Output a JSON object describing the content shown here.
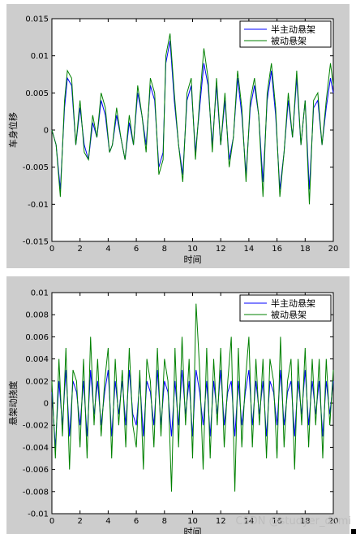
{
  "chart_data": [
    {
      "type": "line",
      "ylabel": "车身位移",
      "xlabel": "时间",
      "xlim": [
        0,
        20
      ],
      "ylim": [
        -0.015,
        0.015
      ],
      "xticks": [
        "0",
        "2",
        "4",
        "6",
        "8",
        "10",
        "12",
        "14",
        "16",
        "18",
        "20"
      ],
      "yticks": [
        "-0.015",
        "-0.01",
        "-0.005",
        "0",
        "0.005",
        "0.01",
        "0.015"
      ],
      "legend_position": "top-right",
      "grid": false,
      "x": [
        0,
        0.3,
        0.6,
        0.9,
        1.1,
        1.4,
        1.7,
        2.0,
        2.3,
        2.6,
        2.9,
        3.2,
        3.5,
        3.8,
        4.1,
        4.3,
        4.6,
        4.9,
        5.2,
        5.5,
        5.8,
        6.1,
        6.4,
        6.7,
        7.0,
        7.3,
        7.6,
        7.9,
        8.1,
        8.4,
        8.7,
        9.0,
        9.3,
        9.6,
        9.9,
        10.2,
        10.5,
        10.8,
        11.1,
        11.4,
        11.7,
        12.0,
        12.3,
        12.6,
        12.9,
        13.2,
        13.5,
        13.8,
        14.1,
        14.4,
        14.7,
        15.0,
        15.3,
        15.6,
        15.9,
        16.2,
        16.5,
        16.8,
        17.1,
        17.4,
        17.7,
        18.0,
        18.3,
        18.6,
        18.9,
        19.2,
        19.5,
        19.8,
        20.0
      ],
      "series": [
        {
          "name": "半主动悬架",
          "color": "#0000ff",
          "values": [
            0,
            -0.002,
            -0.008,
            0.003,
            0.007,
            0.006,
            -0.002,
            0.003,
            -0.002,
            -0.004,
            0.001,
            -0.001,
            0.004,
            0.002,
            -0.003,
            -0.002,
            0.002,
            -0.001,
            -0.004,
            0.001,
            -0.002,
            0.005,
            0.002,
            -0.002,
            0.006,
            0.004,
            -0.005,
            -0.003,
            0.009,
            0.012,
            0.004,
            -0.002,
            -0.006,
            0.004,
            0.006,
            -0.003,
            0.003,
            0.009,
            0.006,
            -0.002,
            0.006,
            -0.002,
            0.004,
            -0.004,
            -0.001,
            0.007,
            0.002,
            -0.006,
            0.003,
            0.006,
            0.002,
            -0.007,
            0.004,
            0.008,
            0.002,
            -0.008,
            -0.003,
            0.004,
            -0.001,
            0.007,
            -0.002,
            0.004,
            -0.008,
            0.003,
            0.004,
            -0.002,
            0.003,
            0.007,
            0.005
          ]
        },
        {
          "name": "被动悬架",
          "color": "#008000",
          "values": [
            0,
            -0.002,
            -0.009,
            0.004,
            0.008,
            0.007,
            -0.002,
            0.004,
            -0.003,
            -0.004,
            0.002,
            -0.001,
            0.005,
            0.003,
            -0.003,
            -0.002,
            0.003,
            -0.001,
            -0.004,
            0.002,
            -0.002,
            0.006,
            0.002,
            -0.003,
            0.007,
            0.005,
            -0.006,
            -0.004,
            0.01,
            0.013,
            0.005,
            -0.002,
            -0.007,
            0.005,
            0.007,
            -0.004,
            0.004,
            0.011,
            0.007,
            -0.003,
            0.007,
            -0.002,
            0.005,
            -0.005,
            -0.001,
            0.008,
            0.003,
            -0.007,
            0.004,
            0.007,
            0.002,
            -0.009,
            0.005,
            0.009,
            0.003,
            -0.009,
            -0.003,
            0.005,
            -0.001,
            0.008,
            -0.002,
            0.004,
            -0.01,
            0.004,
            0.005,
            -0.002,
            0.004,
            0.009,
            0.006
          ]
        }
      ]
    },
    {
      "type": "line",
      "ylabel": "悬架动挠度",
      "xlabel": "时间",
      "xlim": [
        0,
        20
      ],
      "ylim": [
        -0.01,
        0.01
      ],
      "xticks": [
        "0",
        "2",
        "4",
        "6",
        "8",
        "10",
        "12",
        "14",
        "16",
        "18",
        "20"
      ],
      "yticks": [
        "-0.01",
        "-0.008",
        "-0.006",
        "-0.004",
        "-0.002",
        "0",
        "0.002",
        "0.004",
        "0.006",
        "0.008",
        "0.01"
      ],
      "legend_position": "top-right",
      "grid": false,
      "x": [
        0,
        0.25,
        0.5,
        0.75,
        1.0,
        1.25,
        1.5,
        1.75,
        2.0,
        2.25,
        2.5,
        2.75,
        3.0,
        3.25,
        3.5,
        3.75,
        4.0,
        4.25,
        4.5,
        4.75,
        5.0,
        5.25,
        5.5,
        5.75,
        6.0,
        6.25,
        6.5,
        6.75,
        7.0,
        7.25,
        7.5,
        7.75,
        8.0,
        8.25,
        8.5,
        8.75,
        9.0,
        9.25,
        9.5,
        9.75,
        10.0,
        10.25,
        10.5,
        10.75,
        11.0,
        11.25,
        11.5,
        11.75,
        12.0,
        12.25,
        12.5,
        12.75,
        13.0,
        13.25,
        13.5,
        13.75,
        14.0,
        14.25,
        14.5,
        14.75,
        15.0,
        15.25,
        15.5,
        15.75,
        16.0,
        16.25,
        16.5,
        16.75,
        17.0,
        17.25,
        17.5,
        17.75,
        18.0,
        18.25,
        18.5,
        18.75,
        19.0,
        19.25,
        19.5,
        19.75,
        20.0
      ],
      "series": [
        {
          "name": "半主动悬架",
          "color": "#0000ff",
          "values": [
            0.001,
            -0.004,
            0.002,
            -0.002,
            0.003,
            -0.003,
            0.002,
            0.001,
            -0.002,
            0.002,
            -0.003,
            0.003,
            -0.001,
            0.002,
            -0.002,
            0.001,
            0.003,
            -0.003,
            0.002,
            -0.001,
            0.002,
            -0.002,
            0.003,
            -0.001,
            -0.002,
            0.002,
            -0.003,
            0.002,
            0.001,
            -0.002,
            0.003,
            -0.002,
            0.002,
            0.001,
            -0.003,
            0.002,
            -0.002,
            0.003,
            -0.001,
            0.002,
            -0.003,
            0.003,
            0.001,
            -0.002,
            0.002,
            -0.003,
            0.002,
            -0.001,
            0.003,
            -0.002,
            0.001,
            0.002,
            -0.003,
            0.002,
            -0.002,
            0.001,
            0.003,
            -0.002,
            0.002,
            -0.001,
            0.002,
            -0.003,
            0.002,
            0.001,
            -0.002,
            0.003,
            -0.002,
            0.001,
            0.002,
            -0.003,
            0.002,
            -0.001,
            0.003,
            -0.002,
            0.002,
            -0.001,
            0.002,
            -0.003,
            0.002,
            -0.001,
            0.002
          ]
        },
        {
          "name": "被动悬架",
          "color": "#008000",
          "values": [
            0.002,
            -0.005,
            0.004,
            -0.003,
            0.005,
            -0.006,
            0.003,
            0.002,
            -0.004,
            0.004,
            -0.005,
            0.006,
            -0.002,
            0.004,
            -0.003,
            0.002,
            0.005,
            -0.005,
            0.004,
            -0.002,
            0.003,
            -0.004,
            0.005,
            -0.002,
            -0.004,
            0.003,
            -0.006,
            0.004,
            0.002,
            -0.004,
            0.005,
            -0.003,
            0.004,
            0.002,
            -0.008,
            0.005,
            -0.004,
            0.006,
            -0.002,
            0.004,
            -0.005,
            0.009,
            0.003,
            -0.006,
            0.005,
            -0.005,
            0.004,
            -0.002,
            0.005,
            -0.004,
            0.002,
            0.006,
            -0.008,
            0.005,
            -0.004,
            0.002,
            0.006,
            -0.004,
            0.004,
            -0.002,
            0.004,
            -0.005,
            0.004,
            0.002,
            -0.005,
            0.006,
            -0.004,
            0.002,
            0.004,
            -0.006,
            0.004,
            -0.002,
            0.005,
            -0.004,
            0.004,
            -0.002,
            0.004,
            -0.005,
            0.004,
            -0.002,
            0.003
          ]
        }
      ]
    }
  ],
  "watermark": "CSDN @studyer_domi"
}
